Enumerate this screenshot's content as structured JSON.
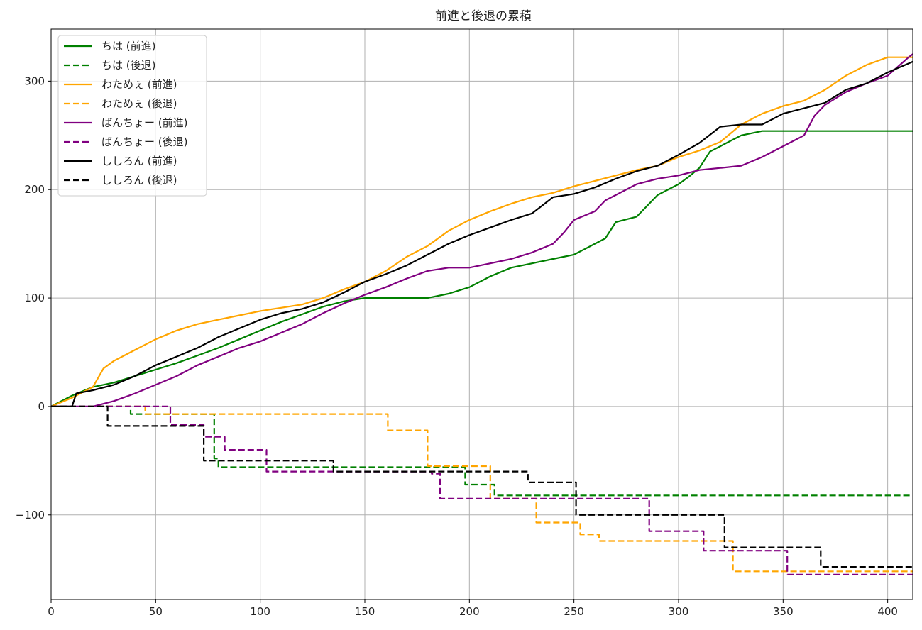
{
  "chart_data": {
    "type": "line",
    "title": "前進と後退の累積",
    "xlabel": "",
    "ylabel": "",
    "xlim": [
      0,
      412
    ],
    "ylim": [
      -178,
      348
    ],
    "xticks": [
      0,
      50,
      100,
      150,
      200,
      250,
      300,
      350,
      400
    ],
    "yticks": [
      -100,
      0,
      100,
      200,
      300
    ],
    "ytick_labels": [
      "−100",
      "0",
      "100",
      "200",
      "300"
    ],
    "grid": true,
    "legend_position": "top-left",
    "colors": {
      "green": "#008000",
      "orange": "#ffa500",
      "purple": "#800080",
      "black": "#000000"
    },
    "series": [
      {
        "name": "ちは (前進)",
        "color": "#008000",
        "style": "solid",
        "points": [
          [
            0,
            0
          ],
          [
            10,
            10
          ],
          [
            20,
            18
          ],
          [
            30,
            22
          ],
          [
            40,
            28
          ],
          [
            50,
            34
          ],
          [
            60,
            40
          ],
          [
            70,
            47
          ],
          [
            80,
            54
          ],
          [
            90,
            62
          ],
          [
            100,
            70
          ],
          [
            110,
            78
          ],
          [
            120,
            85
          ],
          [
            130,
            92
          ],
          [
            140,
            97
          ],
          [
            150,
            100
          ],
          [
            160,
            100
          ],
          [
            170,
            100
          ],
          [
            180,
            100
          ],
          [
            190,
            104
          ],
          [
            200,
            110
          ],
          [
            210,
            120
          ],
          [
            220,
            128
          ],
          [
            230,
            132
          ],
          [
            240,
            136
          ],
          [
            250,
            140
          ],
          [
            255,
            145
          ],
          [
            260,
            150
          ],
          [
            265,
            155
          ],
          [
            270,
            170
          ],
          [
            280,
            175
          ],
          [
            290,
            195
          ],
          [
            300,
            205
          ],
          [
            305,
            212
          ],
          [
            310,
            220
          ],
          [
            315,
            235
          ],
          [
            320,
            240
          ],
          [
            325,
            245
          ],
          [
            330,
            250
          ],
          [
            340,
            254
          ],
          [
            412,
            254
          ]
        ]
      },
      {
        "name": "ちは (後退)",
        "color": "#008000",
        "style": "dashed",
        "points": [
          [
            0,
            0
          ],
          [
            38,
            0
          ],
          [
            38,
            -7
          ],
          [
            78,
            -7
          ],
          [
            78,
            -48
          ],
          [
            80,
            -48
          ],
          [
            80,
            -56
          ],
          [
            198,
            -56
          ],
          [
            198,
            -72
          ],
          [
            212,
            -72
          ],
          [
            212,
            -82
          ],
          [
            412,
            -82
          ]
        ]
      },
      {
        "name": "わためぇ (前進)",
        "color": "#ffa500",
        "style": "solid",
        "points": [
          [
            0,
            0
          ],
          [
            10,
            8
          ],
          [
            20,
            18
          ],
          [
            25,
            35
          ],
          [
            30,
            42
          ],
          [
            40,
            52
          ],
          [
            50,
            62
          ],
          [
            60,
            70
          ],
          [
            70,
            76
          ],
          [
            80,
            80
          ],
          [
            90,
            84
          ],
          [
            100,
            88
          ],
          [
            110,
            91
          ],
          [
            120,
            94
          ],
          [
            130,
            100
          ],
          [
            140,
            108
          ],
          [
            150,
            115
          ],
          [
            160,
            125
          ],
          [
            170,
            138
          ],
          [
            180,
            148
          ],
          [
            190,
            162
          ],
          [
            200,
            172
          ],
          [
            210,
            180
          ],
          [
            220,
            187
          ],
          [
            230,
            193
          ],
          [
            240,
            197
          ],
          [
            250,
            203
          ],
          [
            260,
            208
          ],
          [
            270,
            213
          ],
          [
            280,
            218
          ],
          [
            290,
            222
          ],
          [
            300,
            230
          ],
          [
            310,
            236
          ],
          [
            320,
            244
          ],
          [
            330,
            260
          ],
          [
            340,
            270
          ],
          [
            350,
            277
          ],
          [
            360,
            282
          ],
          [
            370,
            292
          ],
          [
            380,
            305
          ],
          [
            390,
            315
          ],
          [
            400,
            322
          ],
          [
            412,
            322
          ]
        ]
      },
      {
        "name": "わためぇ (後退)",
        "color": "#ffa500",
        "style": "dashed",
        "points": [
          [
            0,
            0
          ],
          [
            45,
            0
          ],
          [
            45,
            -7
          ],
          [
            161,
            -7
          ],
          [
            161,
            -22
          ],
          [
            180,
            -22
          ],
          [
            180,
            -55
          ],
          [
            210,
            -55
          ],
          [
            210,
            -85
          ],
          [
            232,
            -85
          ],
          [
            232,
            -107
          ],
          [
            253,
            -107
          ],
          [
            253,
            -118
          ],
          [
            262,
            -118
          ],
          [
            262,
            -124
          ],
          [
            326,
            -124
          ],
          [
            326,
            -152
          ],
          [
            412,
            -152
          ]
        ]
      },
      {
        "name": "ばんちょー (前進)",
        "color": "#800080",
        "style": "solid",
        "points": [
          [
            0,
            0
          ],
          [
            20,
            0
          ],
          [
            30,
            5
          ],
          [
            40,
            12
          ],
          [
            50,
            20
          ],
          [
            60,
            28
          ],
          [
            70,
            38
          ],
          [
            80,
            46
          ],
          [
            90,
            54
          ],
          [
            100,
            60
          ],
          [
            110,
            68
          ],
          [
            120,
            76
          ],
          [
            130,
            86
          ],
          [
            140,
            95
          ],
          [
            150,
            103
          ],
          [
            160,
            110
          ],
          [
            170,
            118
          ],
          [
            180,
            125
          ],
          [
            190,
            128
          ],
          [
            200,
            128
          ],
          [
            210,
            132
          ],
          [
            220,
            136
          ],
          [
            230,
            142
          ],
          [
            240,
            150
          ],
          [
            245,
            160
          ],
          [
            250,
            172
          ],
          [
            260,
            180
          ],
          [
            265,
            190
          ],
          [
            270,
            195
          ],
          [
            280,
            205
          ],
          [
            290,
            210
          ],
          [
            300,
            213
          ],
          [
            310,
            218
          ],
          [
            320,
            220
          ],
          [
            330,
            222
          ],
          [
            340,
            230
          ],
          [
            350,
            240
          ],
          [
            360,
            250
          ],
          [
            365,
            268
          ],
          [
            370,
            278
          ],
          [
            380,
            290
          ],
          [
            390,
            298
          ],
          [
            400,
            305
          ],
          [
            410,
            322
          ],
          [
            412,
            325
          ]
        ]
      },
      {
        "name": "ばんちょー (後退)",
        "color": "#800080",
        "style": "dashed",
        "points": [
          [
            0,
            0
          ],
          [
            57,
            0
          ],
          [
            57,
            -17
          ],
          [
            73,
            -17
          ],
          [
            73,
            -28
          ],
          [
            83,
            -28
          ],
          [
            83,
            -40
          ],
          [
            103,
            -40
          ],
          [
            103,
            -60
          ],
          [
            182,
            -60
          ],
          [
            182,
            -62
          ],
          [
            186,
            -62
          ],
          [
            186,
            -85
          ],
          [
            286,
            -85
          ],
          [
            286,
            -115
          ],
          [
            312,
            -115
          ],
          [
            312,
            -133
          ],
          [
            352,
            -133
          ],
          [
            352,
            -155
          ],
          [
            412,
            -155
          ]
        ]
      },
      {
        "name": "ししろん (前進)",
        "color": "#000000",
        "style": "solid",
        "points": [
          [
            0,
            0
          ],
          [
            10,
            0
          ],
          [
            12,
            12
          ],
          [
            20,
            15
          ],
          [
            30,
            20
          ],
          [
            40,
            28
          ],
          [
            50,
            38
          ],
          [
            60,
            46
          ],
          [
            70,
            54
          ],
          [
            80,
            64
          ],
          [
            90,
            72
          ],
          [
            100,
            80
          ],
          [
            110,
            86
          ],
          [
            120,
            90
          ],
          [
            130,
            96
          ],
          [
            140,
            105
          ],
          [
            150,
            115
          ],
          [
            160,
            122
          ],
          [
            170,
            130
          ],
          [
            180,
            140
          ],
          [
            190,
            150
          ],
          [
            200,
            158
          ],
          [
            210,
            165
          ],
          [
            220,
            172
          ],
          [
            230,
            178
          ],
          [
            240,
            193
          ],
          [
            250,
            196
          ],
          [
            260,
            202
          ],
          [
            270,
            210
          ],
          [
            280,
            217
          ],
          [
            290,
            222
          ],
          [
            300,
            232
          ],
          [
            310,
            243
          ],
          [
            320,
            258
          ],
          [
            330,
            260
          ],
          [
            340,
            260
          ],
          [
            350,
            270
          ],
          [
            360,
            275
          ],
          [
            370,
            280
          ],
          [
            380,
            292
          ],
          [
            390,
            298
          ],
          [
            400,
            308
          ],
          [
            412,
            318
          ]
        ]
      },
      {
        "name": "ししろん (後退)",
        "color": "#000000",
        "style": "dashed",
        "points": [
          [
            0,
            0
          ],
          [
            27,
            0
          ],
          [
            27,
            -18
          ],
          [
            73,
            -18
          ],
          [
            73,
            -50
          ],
          [
            135,
            -50
          ],
          [
            135,
            -60
          ],
          [
            228,
            -60
          ],
          [
            228,
            -70
          ],
          [
            251,
            -70
          ],
          [
            251,
            -100
          ],
          [
            322,
            -100
          ],
          [
            322,
            -130
          ],
          [
            368,
            -130
          ],
          [
            368,
            -148
          ],
          [
            412,
            -148
          ]
        ]
      }
    ]
  }
}
